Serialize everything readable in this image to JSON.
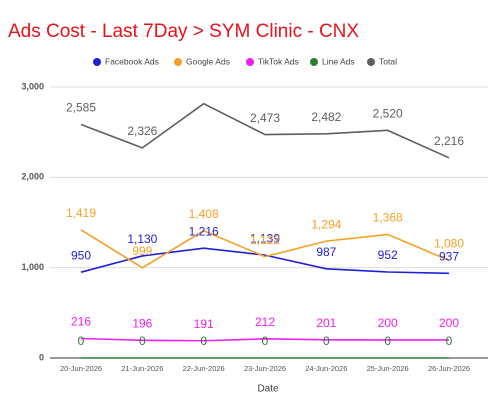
{
  "chart_data": {
    "type": "line",
    "title": "Ads Cost - Last 7Day > SYM Clinic - CNX",
    "x_label": "Date",
    "categories": [
      "20-Jun-2026",
      "21-Jun-2026",
      "22-Jun-2026",
      "23-Jun-2026",
      "24-Jun-2026",
      "25-Jun-2026",
      "26-Jun-2026"
    ],
    "series": [
      {
        "name": "Facebook Ads",
        "color": "#1f1fd6",
        "values": [
          950,
          1130,
          1216,
          1139,
          987,
          952,
          937
        ],
        "value_labels": [
          "950",
          "1,130",
          "1,216",
          "1,139",
          "987",
          "952",
          "937"
        ]
      },
      {
        "name": "Google Ads",
        "color": "#f5a025",
        "values": [
          1419,
          999,
          1408,
          1122,
          1294,
          1368,
          1080
        ],
        "value_labels": [
          "1,419",
          "999",
          "1,408",
          "1,122",
          "1,294",
          "1,368",
          "1,080"
        ]
      },
      {
        "name": "TikTok Ads",
        "color": "#f01ef0",
        "values": [
          216,
          196,
          191,
          212,
          201,
          200,
          200
        ]
      },
      {
        "name": "Line Ads",
        "color": "#2e7d32",
        "values": [
          0,
          0,
          0,
          0,
          0,
          0,
          0
        ]
      },
      {
        "name": "Total",
        "color": "#5f5f5f",
        "values": [
          2585,
          2326,
          2815,
          2473,
          2482,
          2520,
          2216
        ],
        "value_labels": [
          "2,585",
          "2,326",
          null,
          "2,473",
          "2,482",
          "2,520",
          "2,216"
        ]
      }
    ],
    "ylim": [
      0,
      3000
    ],
    "yticks": [
      0,
      {
        "value": 1000,
        "label": "1,000"
      },
      {
        "value": 2000,
        "label": "2,000"
      },
      {
        "value": 3000,
        "label": "3,000"
      }
    ],
    "grid": true,
    "legend": "top"
  }
}
